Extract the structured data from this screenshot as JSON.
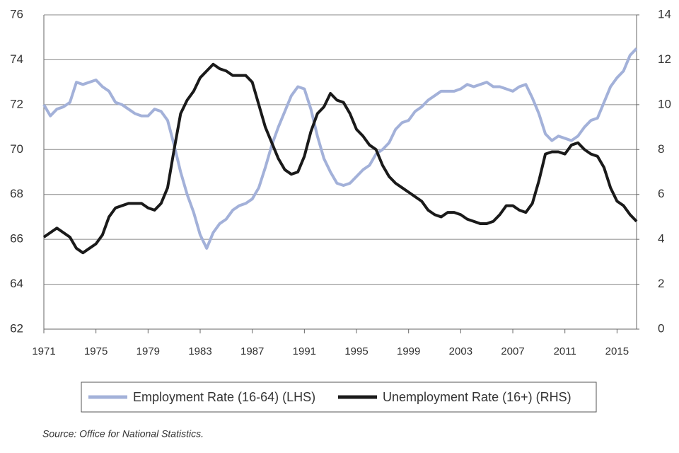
{
  "chart_data": {
    "type": "line",
    "x": [
      1971,
      1971.5,
      1972,
      1972.5,
      1973,
      1973.5,
      1974,
      1974.5,
      1975,
      1975.5,
      1976,
      1976.5,
      1977,
      1977.5,
      1978,
      1978.5,
      1979,
      1979.5,
      1980,
      1980.5,
      1981,
      1981.5,
      1982,
      1982.5,
      1983,
      1983.5,
      1984,
      1984.5,
      1985,
      1985.5,
      1986,
      1986.5,
      1987,
      1987.5,
      1988,
      1988.5,
      1989,
      1989.5,
      1990,
      1990.5,
      1991,
      1991.5,
      1992,
      1992.5,
      1993,
      1993.5,
      1994,
      1994.5,
      1995,
      1995.5,
      1996,
      1996.5,
      1997,
      1997.5,
      1998,
      1998.5,
      1999,
      1999.5,
      2000,
      2000.5,
      2001,
      2001.5,
      2002,
      2002.5,
      2003,
      2003.5,
      2004,
      2004.5,
      2005,
      2005.5,
      2006,
      2006.5,
      2007,
      2007.5,
      2008,
      2008.5,
      2009,
      2009.5,
      2010,
      2010.5,
      2011,
      2011.5,
      2012,
      2012.5,
      2013,
      2013.5,
      2014,
      2014.5,
      2015,
      2015.5,
      2016,
      2016.5
    ],
    "series": [
      {
        "name": "Employment Rate (16-64) (LHS)",
        "color": "#a3b1d9",
        "axis": "y",
        "values": [
          72.0,
          71.5,
          71.8,
          71.9,
          72.1,
          73.0,
          72.9,
          73.0,
          73.1,
          72.8,
          72.6,
          72.1,
          72.0,
          71.8,
          71.6,
          71.5,
          71.5,
          71.8,
          71.7,
          71.3,
          70.2,
          69.0,
          68.0,
          67.2,
          66.2,
          65.6,
          66.3,
          66.7,
          66.9,
          67.3,
          67.5,
          67.6,
          67.8,
          68.3,
          69.2,
          70.2,
          71.0,
          71.7,
          72.4,
          72.8,
          72.7,
          71.8,
          70.6,
          69.6,
          69.0,
          68.5,
          68.4,
          68.5,
          68.8,
          69.1,
          69.3,
          69.8,
          70.0,
          70.3,
          70.9,
          71.2,
          71.3,
          71.7,
          71.9,
          72.2,
          72.4,
          72.6,
          72.6,
          72.6,
          72.7,
          72.9,
          72.8,
          72.9,
          73.0,
          72.8,
          72.8,
          72.7,
          72.6,
          72.8,
          72.9,
          72.3,
          71.6,
          70.7,
          70.4,
          70.6,
          70.5,
          70.4,
          70.6,
          71.0,
          71.3,
          71.4,
          72.1,
          72.8,
          73.2,
          73.5,
          74.2,
          74.5
        ]
      },
      {
        "name": "Unemployment Rate (16+) (RHS)",
        "color": "#1a1a1a",
        "axis": "y2",
        "values": [
          4.1,
          4.3,
          4.5,
          4.3,
          4.1,
          3.6,
          3.4,
          3.6,
          3.8,
          4.2,
          5.0,
          5.4,
          5.5,
          5.6,
          5.6,
          5.6,
          5.4,
          5.3,
          5.6,
          6.3,
          8.0,
          9.6,
          10.2,
          10.6,
          11.2,
          11.5,
          11.8,
          11.6,
          11.5,
          11.3,
          11.3,
          11.3,
          11.0,
          10.0,
          9.0,
          8.3,
          7.6,
          7.1,
          6.9,
          7.0,
          7.7,
          8.8,
          9.6,
          9.9,
          10.5,
          10.2,
          10.1,
          9.6,
          8.9,
          8.6,
          8.2,
          8.0,
          7.3,
          6.8,
          6.5,
          6.3,
          6.1,
          5.9,
          5.7,
          5.3,
          5.1,
          5.0,
          5.2,
          5.2,
          5.1,
          4.9,
          4.8,
          4.7,
          4.7,
          4.8,
          5.1,
          5.5,
          5.5,
          5.3,
          5.2,
          5.6,
          6.6,
          7.8,
          7.9,
          7.9,
          7.8,
          8.2,
          8.3,
          8.0,
          7.8,
          7.7,
          7.2,
          6.3,
          5.7,
          5.5,
          5.1,
          4.8
        ]
      }
    ],
    "xlim": [
      1971,
      2016.5
    ],
    "xticks": [
      1971,
      1975,
      1979,
      1983,
      1987,
      1991,
      1995,
      1999,
      2003,
      2007,
      2011,
      2015
    ],
    "ylim": [
      62,
      76
    ],
    "yticks": [
      62,
      64,
      66,
      68,
      70,
      72,
      74,
      76
    ],
    "y2lim": [
      0,
      14
    ],
    "y2ticks": [
      0,
      2,
      4,
      6,
      8,
      10,
      12,
      14
    ],
    "grid": true,
    "legend": "bottom",
    "source": "Source: Office for National Statistics."
  }
}
